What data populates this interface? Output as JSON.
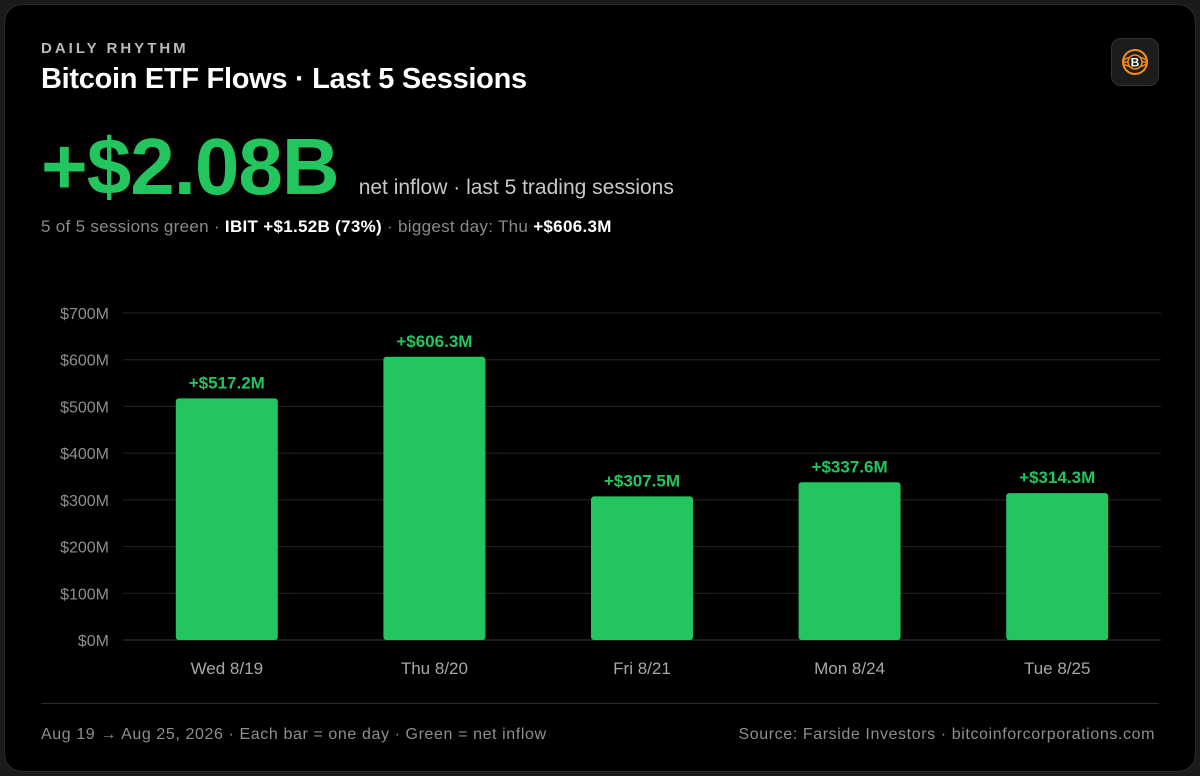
{
  "header": {
    "eyebrow": "DAILY RHYTHM",
    "title": "Bitcoin ETF Flows · Last 5 Sessions",
    "logo_icon": "bitcoin-globe-logo"
  },
  "headline": {
    "value": "+$2.08B",
    "caption": "net inflow · last 5 trading sessions"
  },
  "subline": {
    "sessions": "5 of 5 sessions green",
    "sep1": " · ",
    "ibit": "IBIT +$1.52B (73%)",
    "sep2": " · ",
    "biggest_label": "biggest day: Thu ",
    "biggest_value": "+$606.3M"
  },
  "chart_data": {
    "type": "bar",
    "categories": [
      "Wed 8/19",
      "Thu 8/20",
      "Fri 8/21",
      "Mon 8/24",
      "Tue 8/25"
    ],
    "values": [
      517.2,
      606.3,
      307.5,
      337.6,
      314.3
    ],
    "data_labels": [
      "+$517.2M",
      "+$606.3M",
      "+$307.5M",
      "+$337.6M",
      "+$314.3M"
    ],
    "y_ticks": [
      0,
      100,
      200,
      300,
      400,
      500,
      600,
      700
    ],
    "y_tick_labels": [
      "$0M",
      "$100M",
      "$200M",
      "$300M",
      "$400M",
      "$500M",
      "$600M",
      "$700M"
    ],
    "ylim": [
      0,
      700
    ],
    "grid": true,
    "bar_color": "#22c55e",
    "title": "",
    "xlabel": "",
    "ylabel": ""
  },
  "footer": {
    "left": "Aug 19 → Aug 25, 2026 · Each bar = one day · Green = net inflow",
    "right": "Source: Farside Investors · bitcoinforcorporations.com"
  },
  "colors": {
    "accent": "#22c55e",
    "background": "#000000"
  }
}
